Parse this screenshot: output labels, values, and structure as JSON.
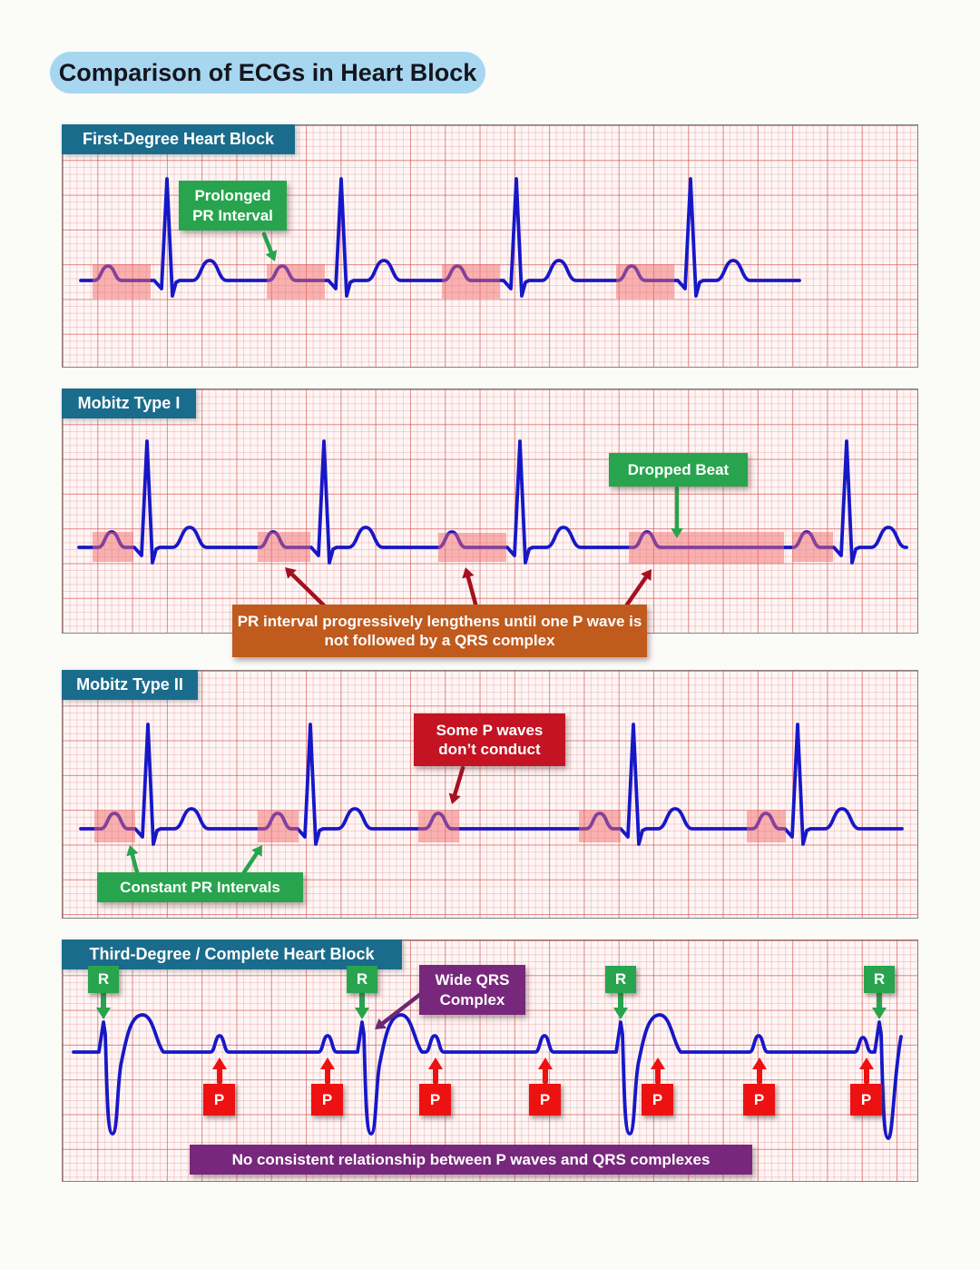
{
  "title": "Comparison of ECGs in Heart Block",
  "panels": {
    "first_degree": {
      "header": "First-Degree Heart Block",
      "annotation": "Prolonged\nPR Interval"
    },
    "mobitz1": {
      "header": "Mobitz Type I",
      "dropped_beat": "Dropped Beat",
      "caption": "PR interval progressively lengthens until one P wave is\nnot followed by a QRS complex"
    },
    "mobitz2": {
      "header": "Mobitz Type II",
      "some_p": "Some P waves\ndon’t conduct",
      "constant_pr": "Constant PR Intervals"
    },
    "third_degree": {
      "header": "Third-Degree / Complete Heart Block",
      "wide_qrs": "Wide QRS\nComplex",
      "r_label": "R",
      "p_label": "P",
      "caption": "No consistent relationship between P waves and QRS complexes"
    }
  },
  "colors": {
    "ecg_blue": "#1717C8",
    "grid_red": "#E07878",
    "highlight_pink": "#F26B6B",
    "annotation_green": "#28A44E",
    "dark_red_arrow": "#A31120",
    "orange_caption": "#C05A1D",
    "crimson_box": "#C41322",
    "purple_box": "#78287C",
    "teal_header": "#1A6C8C",
    "title_pill_blue": "#A7D7F0",
    "p_marker_red": "#EE1111"
  }
}
